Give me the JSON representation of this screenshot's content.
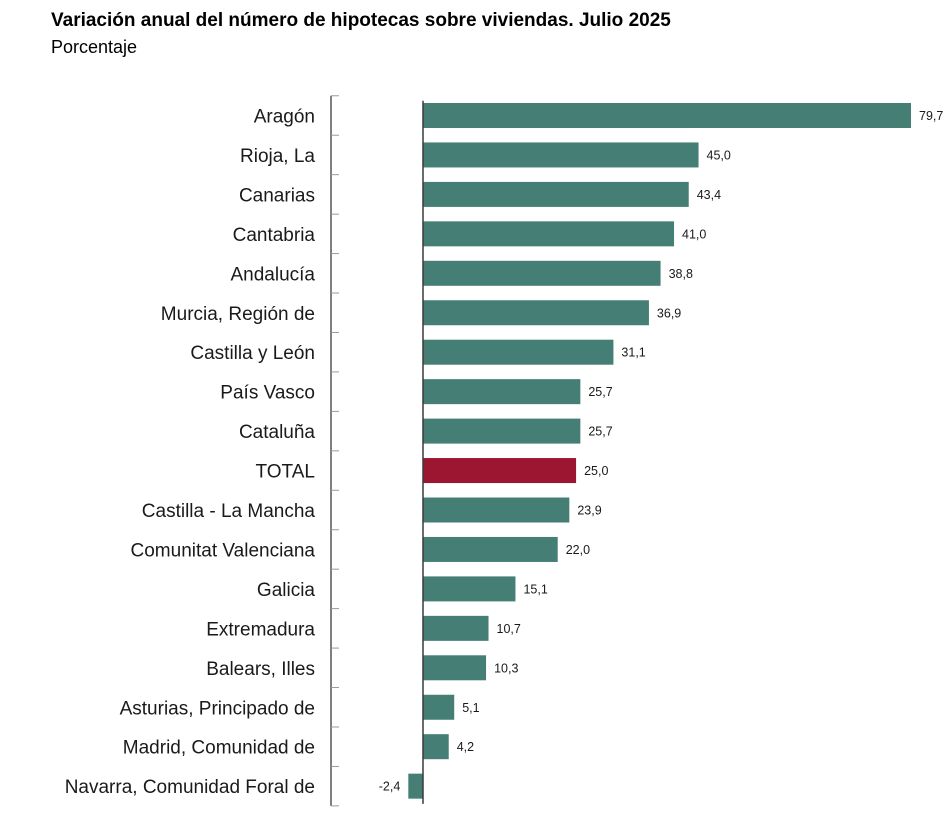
{
  "chart_data": {
    "type": "bar",
    "orientation": "horizontal",
    "title": "Variación anual del número de hipotecas sobre viviendas. Julio 2025",
    "subtitle": "Porcentaje",
    "categories": [
      "Aragón",
      "Rioja, La",
      "Canarias",
      "Cantabria",
      "Andalucía",
      "Murcia, Región de",
      "Castilla y León",
      "País Vasco",
      "Cataluña",
      "TOTAL",
      "Castilla - La Mancha",
      "Comunitat Valenciana",
      "Galicia",
      "Extremadura",
      "Balears, Illes",
      "Asturias, Principado de",
      "Madrid, Comunidad de",
      "Navarra, Comunidad Foral de"
    ],
    "values": [
      79.7,
      45.0,
      43.4,
      41.0,
      38.8,
      36.9,
      31.1,
      25.7,
      25.7,
      25.0,
      23.9,
      22.0,
      15.1,
      10.7,
      10.3,
      5.1,
      4.2,
      -2.4
    ],
    "value_labels": [
      "79,7",
      "45,0",
      "43,4",
      "41,0",
      "38,8",
      "36,9",
      "31,1",
      "25,7",
      "25,7",
      "25,0",
      "23,9",
      "22,0",
      "15,1",
      "10,7",
      "10,3",
      "5,1",
      "4,2",
      "-2,4"
    ],
    "highlight_category": "TOTAL",
    "colors": {
      "bar": "#457e74",
      "highlight": "#9c1631",
      "axis": "#555555"
    },
    "xlim": [
      -2.4,
      79.7
    ],
    "grid": false,
    "legend": "none"
  }
}
